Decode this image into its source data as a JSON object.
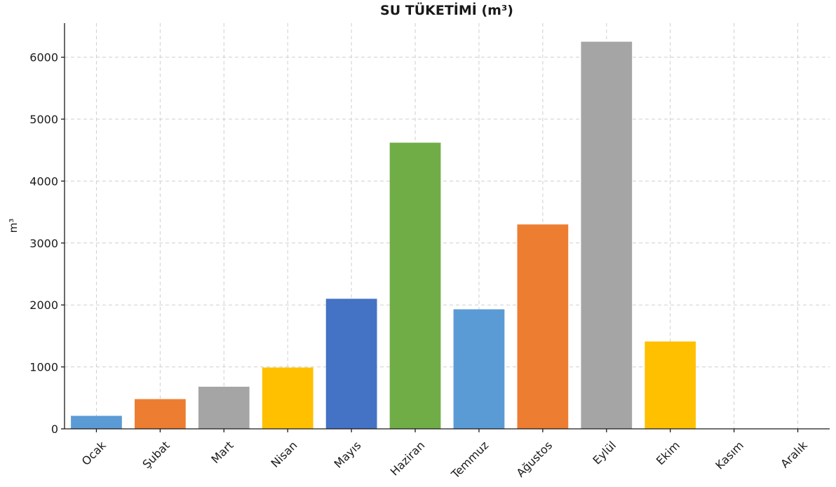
{
  "chart_data": {
    "type": "bar",
    "title": "SU TÜKETİMİ (m³)",
    "xlabel": "",
    "ylabel": "m³",
    "categories": [
      "Ocak",
      "Şubat",
      "Mart",
      "Nisan",
      "Mayıs",
      "Haziran",
      "Temmuz",
      "Ağustos",
      "Eylül",
      "Ekim",
      "Kasım",
      "Aralık"
    ],
    "values": [
      210,
      480,
      680,
      990,
      2100,
      4620,
      1930,
      3300,
      6250,
      1410,
      0,
      0
    ],
    "colors": [
      "#5b9bd5",
      "#ed7d31",
      "#a5a5a5",
      "#ffc000",
      "#4472c4",
      "#70ad47",
      "#5b9bd5",
      "#ed7d31",
      "#a5a5a5",
      "#ffc000",
      "#4472c4",
      "#70ad47"
    ],
    "ylim": [
      0,
      6550
    ],
    "yticks": [
      0,
      1000,
      2000,
      3000,
      4000,
      5000,
      6000
    ],
    "grid": true,
    "legend": "none"
  }
}
